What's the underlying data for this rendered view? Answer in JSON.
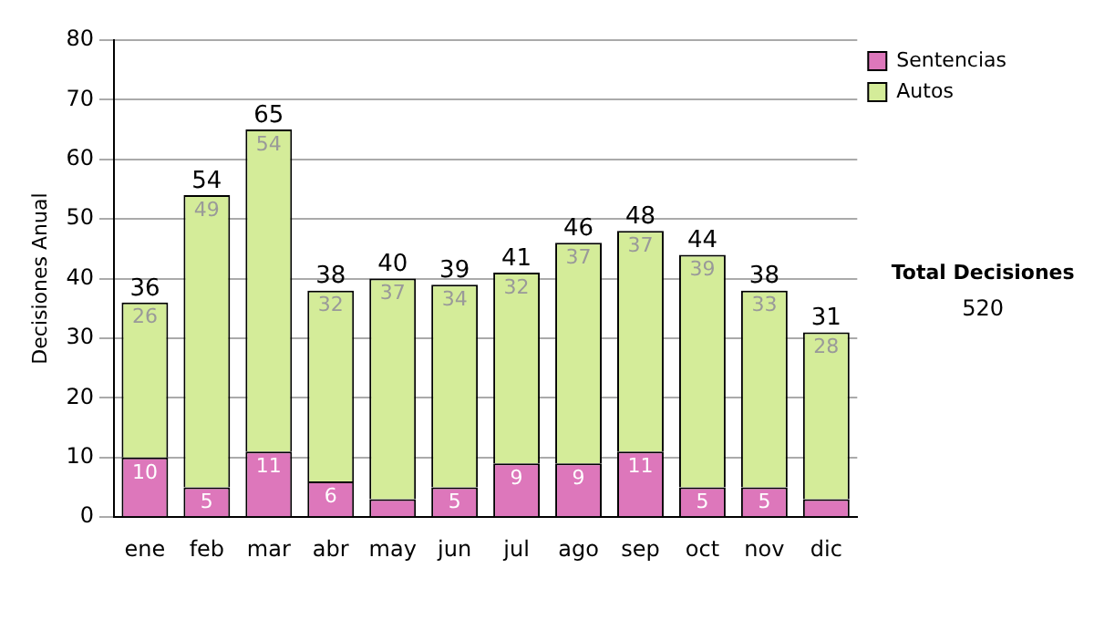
{
  "chart_data": {
    "type": "bar",
    "stacked": true,
    "ylabel": "Decisiones Anual",
    "categories": [
      "ene",
      "feb",
      "mar",
      "abr",
      "may",
      "jun",
      "jul",
      "ago",
      "sep",
      "oct",
      "nov",
      "dic"
    ],
    "series": [
      {
        "name": "Sentencias",
        "color": "#dd77bb",
        "values": [
          10,
          5,
          11,
          6,
          3,
          5,
          9,
          9,
          11,
          5,
          5,
          3
        ],
        "value_labels": [
          "10",
          "5",
          "11",
          "6",
          null,
          "5",
          "9",
          "9",
          "11",
          "5",
          "5",
          null
        ]
      },
      {
        "name": "Autos",
        "color": "#d4ec99",
        "values": [
          26,
          49,
          54,
          32,
          37,
          34,
          32,
          37,
          37,
          39,
          33,
          28
        ],
        "value_labels": [
          "26",
          "49",
          "54",
          "32",
          "37",
          "34",
          "32",
          "37",
          "37",
          "39",
          "33",
          "28"
        ]
      }
    ],
    "totals": [
      "36",
      "54",
      "65",
      "38",
      "40",
      "39",
      "41",
      "46",
      "48",
      "44",
      "38",
      "31"
    ],
    "ylim": [
      0,
      80
    ],
    "yticks": [
      0,
      10,
      20,
      30,
      40,
      50,
      60,
      70,
      80
    ],
    "grid": "y",
    "legend": "right",
    "annotations": [
      "Total Decisiones",
      "520"
    ]
  }
}
